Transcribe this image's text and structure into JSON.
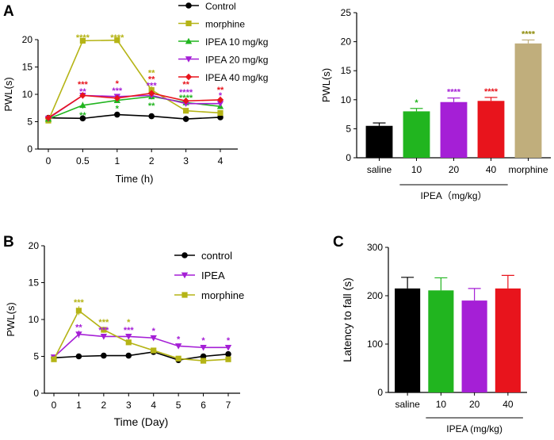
{
  "chart_data": [
    {
      "panel": "A",
      "type": "line",
      "title": "",
      "xlabel": "Time (h)",
      "ylabel": "PWL(s)",
      "ylim": [
        0,
        20
      ],
      "yticks": [
        "0",
        "5",
        "10",
        "15",
        "20"
      ],
      "categories": [
        "0",
        "0.5",
        "1",
        "2",
        "3",
        "4"
      ],
      "legend_position": "top-right",
      "series": [
        {
          "name": "Control",
          "color": "#000000",
          "marker": "circle",
          "values": [
            5.7,
            5.6,
            6.3,
            6.0,
            5.5,
            5.8
          ],
          "errors": [
            0.3,
            0.2,
            0.4,
            0.3,
            0.2,
            0.3
          ]
        },
        {
          "name": "morphine",
          "color": "#b5b416",
          "marker": "square",
          "values": [
            5.2,
            19.8,
            19.9,
            10.8,
            7.0,
            6.6
          ],
          "errors": [
            0.3,
            0.3,
            0.2,
            0.7,
            0.3,
            0.3
          ]
        },
        {
          "name": "IPEA  10 mg/kg",
          "color": "#21b51f",
          "marker": "triangle-up",
          "values": [
            5.5,
            8.0,
            8.9,
            9.6,
            8.5,
            7.8
          ],
          "errors": [
            0.3,
            0.6,
            0.4,
            0.5,
            0.4,
            0.4
          ]
        },
        {
          "name": "IPEA  20 mg/kg",
          "color": "#a51fd6",
          "marker": "triangle-down",
          "values": [
            5.6,
            9.8,
            9.6,
            9.8,
            8.3,
            8.3
          ],
          "errors": [
            0.3,
            0.6,
            0.4,
            0.5,
            0.4,
            0.4
          ]
        },
        {
          "name": "IPEA  40 mg/kg",
          "color": "#e8141c",
          "marker": "diamond",
          "values": [
            5.7,
            9.8,
            9.3,
            10.2,
            8.8,
            9.0
          ],
          "errors": [
            0.3,
            0.5,
            0.4,
            0.5,
            0.4,
            0.6
          ]
        }
      ],
      "annotations": [
        {
          "text": "****",
          "color": "#b5b416",
          "x_index": 1,
          "y": 20.6
        },
        {
          "text": "****",
          "color": "#b5b416",
          "x_index": 2,
          "y": 20.6
        },
        {
          "text": "**",
          "color": "#b5b416",
          "x_index": 3,
          "y": 14.1
        },
        {
          "text": "***",
          "color": "#e8141c",
          "x_index": 1,
          "y": 12.0
        },
        {
          "text": "**",
          "color": "#a51fd6",
          "x_index": 1,
          "y": 10.7
        },
        {
          "text": "**",
          "color": "#21b51f",
          "x_index": 1,
          "y": 6.4
        },
        {
          "text": "*",
          "color": "#e8141c",
          "x_index": 2,
          "y": 12.2
        },
        {
          "text": "***",
          "color": "#a51fd6",
          "x_index": 2,
          "y": 10.9
        },
        {
          "text": "*",
          "color": "#21b51f",
          "x_index": 2,
          "y": 7.6
        },
        {
          "text": "**",
          "color": "#e8141c",
          "x_index": 3,
          "y": 13.0
        },
        {
          "text": "***",
          "color": "#a51fd6",
          "x_index": 3,
          "y": 11.8
        },
        {
          "text": "**",
          "color": "#21b51f",
          "x_index": 3,
          "y": 8.1
        },
        {
          "text": "**",
          "color": "#e8141c",
          "x_index": 4,
          "y": 12.0
        },
        {
          "text": "****",
          "color": "#a51fd6",
          "x_index": 4,
          "y": 10.6
        },
        {
          "text": "****",
          "color": "#21b51f",
          "x_index": 4,
          "y": 9.6
        },
        {
          "text": "**",
          "color": "#e8141c",
          "x_index": 5,
          "y": 11.0
        },
        {
          "text": "*",
          "color": "#a51fd6",
          "x_index": 5,
          "y": 10.0
        }
      ]
    },
    {
      "panel": "A-right",
      "type": "bar",
      "title": "",
      "xlabel": "",
      "ylabel": "PWL(s)",
      "ylim": [
        0,
        25
      ],
      "yticks": [
        "0",
        "5",
        "10",
        "15",
        "20",
        "25"
      ],
      "categories": [
        "saline",
        "10",
        "20",
        "40",
        "morphine"
      ],
      "values": [
        5.5,
        8.0,
        9.6,
        9.8,
        19.7
      ],
      "errors": [
        0.5,
        0.5,
        0.7,
        0.6,
        0.6
      ],
      "colors": [
        "#000000",
        "#21b51f",
        "#a51fd6",
        "#e8141c",
        "#c0ae7c"
      ],
      "annotations": [
        "",
        "*",
        "****",
        "****",
        "****"
      ],
      "annotation_colors": [
        "#000000",
        "#21b51f",
        "#a51fd6",
        "#e8141c",
        "#8f8c0c"
      ],
      "group_label": "IPEA（mg/kg）"
    },
    {
      "panel": "B",
      "type": "line",
      "title": "",
      "xlabel": "Time (Day)",
      "ylabel": "PWL(s)",
      "ylim": [
        0,
        20
      ],
      "yticks": [
        "0",
        "5",
        "10",
        "15",
        "20"
      ],
      "categories": [
        "0",
        "1",
        "2",
        "3",
        "4",
        "5",
        "6",
        "7"
      ],
      "legend_position": "top-right",
      "series": [
        {
          "name": "control",
          "color": "#000000",
          "marker": "circle",
          "values": [
            4.8,
            5.0,
            5.1,
            5.1,
            5.6,
            4.5,
            5.0,
            5.3
          ],
          "errors": [
            0.2,
            0.2,
            0.2,
            0.2,
            0.3,
            0.2,
            0.2,
            0.2
          ]
        },
        {
          "name": "IPEA",
          "color": "#a51fd6",
          "marker": "triangle-down",
          "values": [
            4.9,
            8.0,
            7.7,
            7.7,
            7.5,
            6.4,
            6.2,
            6.2
          ],
          "errors": [
            0.3,
            0.5,
            0.3,
            0.3,
            0.3,
            0.3,
            0.2,
            0.2
          ]
        },
        {
          "name": "morphine",
          "color": "#b5b416",
          "marker": "square",
          "values": [
            4.6,
            11.2,
            8.6,
            6.9,
            5.8,
            4.7,
            4.4,
            4.6
          ],
          "errors": [
            0.2,
            0.6,
            0.4,
            0.3,
            0.2,
            0.2,
            0.2,
            0.2
          ]
        }
      ],
      "annotations": [
        {
          "text": "***",
          "color": "#b5b416",
          "x_index": 1,
          "y": 12.5
        },
        {
          "text": "**",
          "color": "#a51fd6",
          "x_index": 1,
          "y": 9.1
        },
        {
          "text": "***",
          "color": "#b5b416",
          "x_index": 2,
          "y": 9.8
        },
        {
          "text": "***",
          "color": "#a51fd6",
          "x_index": 2,
          "y": 8.7
        },
        {
          "text": "*",
          "color": "#b5b416",
          "x_index": 3,
          "y": 9.8
        },
        {
          "text": "***",
          "color": "#a51fd6",
          "x_index": 3,
          "y": 8.7
        },
        {
          "text": "*",
          "color": "#a51fd6",
          "x_index": 4,
          "y": 8.6
        },
        {
          "text": "*",
          "color": "#a51fd6",
          "x_index": 5,
          "y": 7.5
        },
        {
          "text": "*",
          "color": "#a51fd6",
          "x_index": 6,
          "y": 7.3
        },
        {
          "text": "*",
          "color": "#a51fd6",
          "x_index": 7,
          "y": 7.3
        }
      ]
    },
    {
      "panel": "C",
      "type": "bar",
      "title": "",
      "xlabel": "",
      "ylabel": "Latency to fall (s)",
      "ylim": [
        0,
        300
      ],
      "yticks": [
        "0",
        "100",
        "200",
        "300"
      ],
      "categories": [
        "saline",
        "10",
        "20",
        "40"
      ],
      "values": [
        215,
        211,
        190,
        215
      ],
      "errors": [
        23,
        26,
        25,
        27
      ],
      "colors": [
        "#000000",
        "#21b51f",
        "#a51fd6",
        "#e8141c"
      ],
      "group_label": "IPEA (mg/kg)"
    }
  ]
}
